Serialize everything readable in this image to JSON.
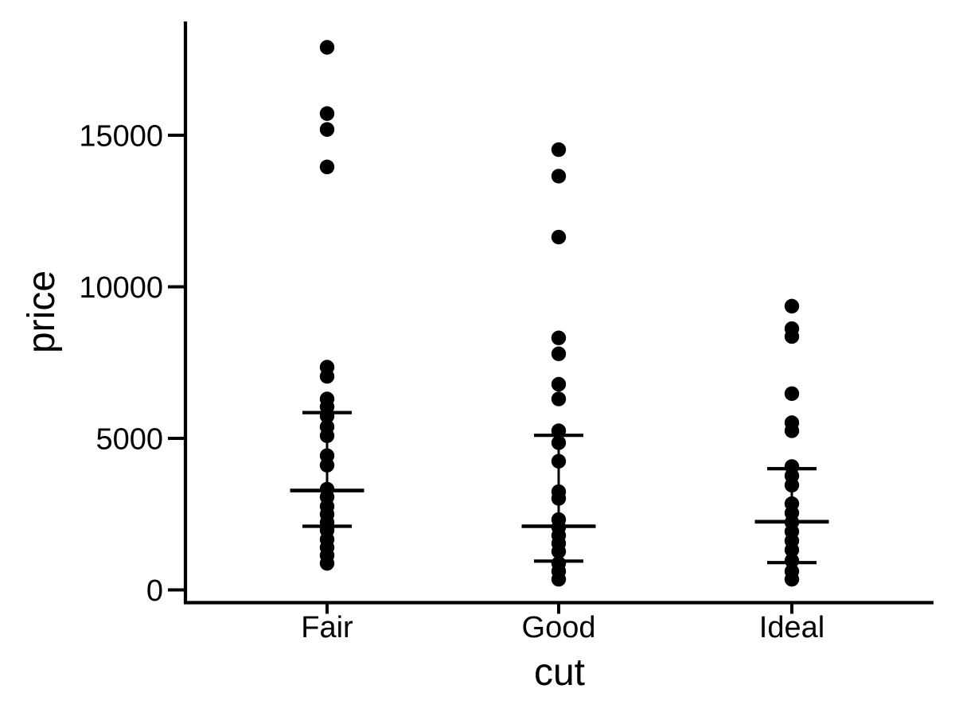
{
  "figure": {
    "background_color": "#ffffff",
    "ink_color": "#000000"
  },
  "chart_data": {
    "type": "scatter",
    "subtype": "strip-plot-with-summary-bars",
    "title": "",
    "xlabel": "cut",
    "ylabel": "price",
    "grid": "off",
    "legend": "none",
    "categories": [
      "Fair",
      "Good",
      "Ideal"
    ],
    "y_ticks": [
      0,
      5000,
      10000,
      15000
    ],
    "y_tick_labels": [
      "0",
      "5000",
      "10000",
      "15000"
    ],
    "ylim": [
      -430,
      18730
    ],
    "series": [
      {
        "name": "Fair",
        "points": [
          17900,
          15715,
          15190,
          13955,
          7350,
          7045,
          6300,
          6040,
          5735,
          5380,
          5085,
          4430,
          4115,
          3325,
          3065,
          2755,
          2495,
          2230,
          1970,
          1665,
          1400,
          1140,
          875
        ],
        "summary": {
          "upper": 5850,
          "mid": 3280,
          "lower": 2100
        }
      },
      {
        "name": "Good",
        "points": [
          14525,
          13650,
          11640,
          8315,
          7790,
          6785,
          6300,
          5250,
          4855,
          4245,
          3240,
          3020,
          2320,
          2065,
          1795,
          1535,
          1270,
          875,
          615,
          350
        ],
        "summary": {
          "upper": 5100,
          "mid": 2100,
          "lower": 950
        }
      },
      {
        "name": "Ideal",
        "points": [
          9360,
          8620,
          8360,
          6475,
          5515,
          5250,
          4070,
          3765,
          3455,
          2845,
          2540,
          2230,
          1925,
          1620,
          1315,
          965,
          615,
          350
        ],
        "summary": {
          "upper": 4000,
          "mid": 2250,
          "lower": 900
        }
      }
    ]
  }
}
